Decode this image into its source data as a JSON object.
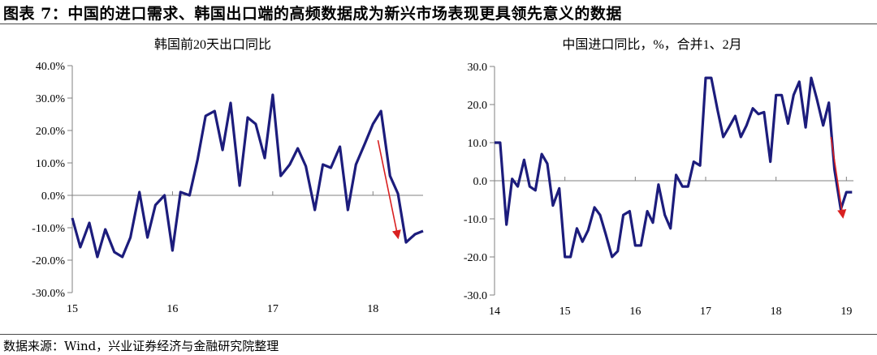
{
  "figure": {
    "title": "图表 7：中国的进口需求、韩国出口端的高频数据成为新兴市场表现更具领先意义的数据",
    "source": "数据来源：Wind，兴业证券经济与金融研究院整理"
  },
  "colors": {
    "line": "#1c1c7c",
    "arrow": "#d92020",
    "axis": "#808080"
  },
  "chart_data": [
    {
      "type": "line",
      "title": "韩国前20天出口同比",
      "xlabel": "",
      "ylabel": "",
      "x_range": [
        15,
        18.5
      ],
      "ylim": [
        -30,
        40
      ],
      "yticks": [
        -30,
        -20,
        -10,
        0,
        10,
        20,
        30,
        40
      ],
      "ytick_labels": [
        "-30.0%",
        "-20.0%",
        "-10.0%",
        "0.0%",
        "10.0%",
        "20.0%",
        "30.0%",
        "40.0%"
      ],
      "xticks": [
        15,
        16,
        17,
        18
      ],
      "xtick_labels": [
        "15",
        "16",
        "17",
        "18"
      ],
      "grid": false,
      "series": [
        {
          "x": [
            15.0,
            15.08,
            15.17,
            15.25,
            15.33,
            15.42,
            15.5,
            15.58,
            15.67,
            15.75,
            15.83,
            15.92,
            16.0,
            16.08,
            16.17,
            16.25,
            16.33,
            16.42,
            16.5,
            16.58,
            16.67,
            16.75,
            16.83,
            16.92,
            17.0,
            17.08,
            17.17,
            17.25,
            17.33,
            17.42,
            17.5,
            17.58,
            17.67,
            17.75,
            17.83,
            17.92,
            18.0,
            18.08,
            18.17,
            18.25,
            18.33,
            18.42,
            18.5
          ],
          "values": [
            -7,
            -16,
            -8.5,
            -19,
            -10.5,
            -17.5,
            -19,
            -13,
            1,
            -13,
            -3,
            0,
            -17,
            1,
            0,
            11,
            24.5,
            26,
            14,
            28.5,
            3,
            24,
            22,
            11.5,
            31,
            6,
            9.5,
            14.5,
            9,
            -4.5,
            9.5,
            8.5,
            15,
            -4.5,
            9.5,
            16,
            22,
            26,
            6,
            0.5,
            -14.5,
            -12,
            -11
          ]
        }
      ],
      "annotations": [
        {
          "type": "arrow",
          "from": [
            18.05,
            17
          ],
          "to": [
            18.25,
            -13
          ]
        }
      ]
    },
    {
      "type": "line",
      "title": "中国进口同比，%，合并1、2月",
      "xlabel": "",
      "ylabel": "",
      "x_range": [
        14,
        19.1
      ],
      "ylim": [
        -30,
        30
      ],
      "yticks": [
        -30,
        -20,
        -10,
        0,
        10,
        20,
        30
      ],
      "ytick_labels": [
        "-30.0",
        "-20.0",
        "-10.0",
        "0.0",
        "10.0",
        "20.0",
        "30.0"
      ],
      "xticks": [
        14,
        15,
        16,
        17,
        18,
        19
      ],
      "xtick_labels": [
        "14",
        "15",
        "16",
        "17",
        "18",
        "19"
      ],
      "grid": false,
      "series": [
        {
          "x": [
            14.0,
            14.08,
            14.17,
            14.25,
            14.33,
            14.42,
            14.5,
            14.58,
            14.67,
            14.75,
            14.83,
            14.92,
            15.0,
            15.08,
            15.17,
            15.25,
            15.33,
            15.42,
            15.5,
            15.58,
            15.67,
            15.75,
            15.83,
            15.92,
            16.0,
            16.08,
            16.17,
            16.25,
            16.33,
            16.42,
            16.5,
            16.58,
            16.67,
            16.75,
            16.83,
            16.92,
            17.0,
            17.08,
            17.17,
            17.25,
            17.33,
            17.42,
            17.5,
            17.58,
            17.67,
            17.75,
            17.83,
            17.92,
            18.0,
            18.08,
            18.17,
            18.25,
            18.33,
            18.42,
            18.5,
            18.58,
            18.67,
            18.75,
            18.83,
            18.92,
            19.0,
            19.08
          ],
          "values": [
            10,
            10,
            -11.5,
            0.5,
            -1.5,
            5.5,
            -1.5,
            -2.5,
            7,
            4.5,
            -6.5,
            -2,
            -20,
            -20,
            -12.5,
            -16,
            -13,
            -7,
            -9,
            -14,
            -20,
            -18.5,
            -9,
            -8,
            -17,
            -17,
            -8,
            -11,
            -1,
            -9,
            -12.5,
            1.5,
            -1.5,
            -1.5,
            5,
            4,
            27,
            27,
            18.5,
            11.5,
            14,
            17,
            11.5,
            14.5,
            19,
            17.5,
            18,
            5,
            22.5,
            22.5,
            15,
            22.5,
            26,
            14,
            27,
            21.5,
            14.5,
            20.5,
            3,
            -7.5,
            -3,
            -3
          ]
        }
      ],
      "annotations": [
        {
          "type": "arrow",
          "from": [
            18.78,
            11.5
          ],
          "to": [
            18.95,
            -9.5
          ]
        }
      ]
    }
  ]
}
